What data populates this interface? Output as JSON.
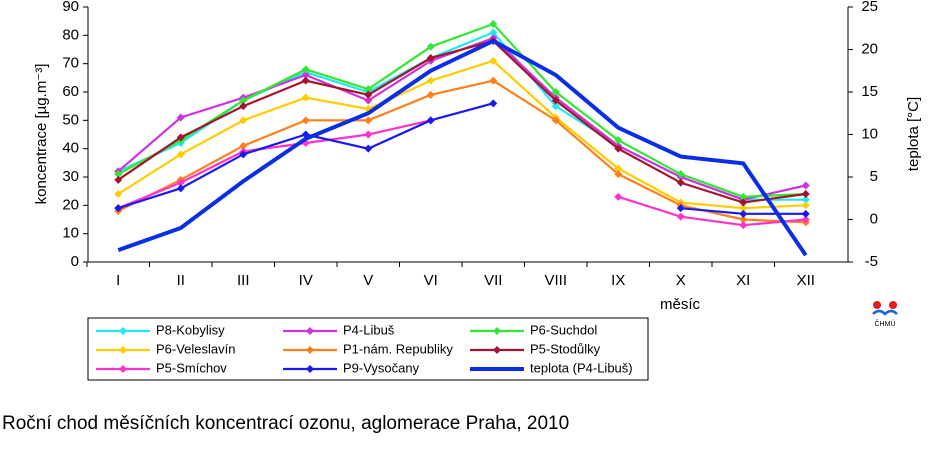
{
  "chart_data": {
    "type": "line",
    "caption": "Roční chod měsíčních koncentrací ozonu, aglomerace Praha, 2010",
    "ylabel": "koncentrace [µg.m⁻³]",
    "y2label": "teplota [°C]",
    "xlabel": "měsíc",
    "logo": "ČHMÚ",
    "categories": [
      "I",
      "II",
      "III",
      "IV",
      "V",
      "VI",
      "VII",
      "VIII",
      "IX",
      "X",
      "XI",
      "XII"
    ],
    "ylim": [
      0,
      90
    ],
    "yticks": [
      0,
      10,
      20,
      30,
      40,
      50,
      60,
      70,
      80,
      90
    ],
    "y2lim": [
      -5,
      25
    ],
    "y2ticks": [
      -5,
      0,
      5,
      10,
      15,
      20,
      25
    ],
    "series": [
      {
        "name": "P8-Kobylisy",
        "color": "#22e8f0",
        "values": [
          32,
          42,
          57,
          67,
          60,
          72,
          81,
          55,
          41,
          30,
          22,
          22
        ]
      },
      {
        "name": "P4-Libuš",
        "color": "#cc33dd",
        "values": [
          32,
          51,
          58,
          66,
          57,
          71,
          79,
          58,
          41,
          30,
          22,
          27
        ]
      },
      {
        "name": "P6-Suchdol",
        "color": "#33e633",
        "values": [
          31,
          43,
          57,
          68,
          61,
          76,
          84,
          60,
          43,
          31,
          23,
          24
        ]
      },
      {
        "name": "P6-Veleslavín",
        "color": "#ffcc00",
        "values": [
          24,
          38,
          50,
          58,
          54,
          64,
          71,
          51,
          33,
          21,
          19,
          20
        ]
      },
      {
        "name": "P1-nám. Republiky",
        "color": "#ff7f1a",
        "values": [
          18,
          29,
          41,
          50,
          50,
          59,
          64,
          50,
          31,
          20,
          15,
          14
        ]
      },
      {
        "name": "P5-Stodůlky",
        "color": "#a3152f",
        "values": [
          29,
          44,
          55,
          64,
          59,
          72,
          78,
          57,
          40,
          28,
          21,
          24
        ]
      },
      {
        "name": "P5-Smíchov",
        "color": "#ff33cc",
        "values": [
          19,
          28,
          39,
          42,
          45,
          50,
          null,
          null,
          23,
          16,
          13,
          15
        ]
      },
      {
        "name": "P9-Vysočany",
        "color": "#1a1aee",
        "values": [
          19,
          26,
          38,
          45,
          40,
          50,
          56,
          null,
          null,
          19,
          17,
          17
        ]
      },
      {
        "name": "teplota (P4-Libuš)",
        "color": "#0a2ee6",
        "axis": "y2",
        "values": [
          -3.6,
          -1,
          4.5,
          9.5,
          12.5,
          17.5,
          21,
          17,
          10.8,
          7.4,
          6.6,
          -4.2
        ]
      }
    ]
  }
}
